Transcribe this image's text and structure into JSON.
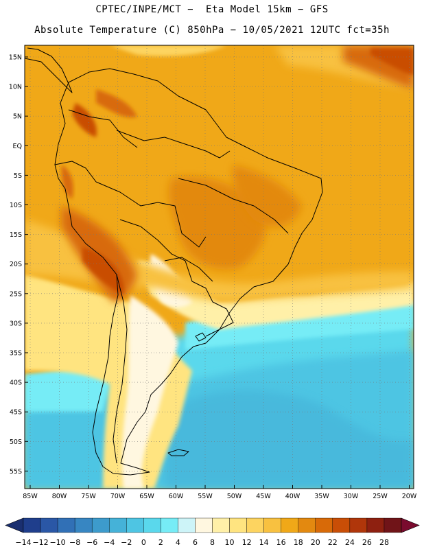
{
  "header": {
    "line1": "CPTEC/INPE/MCT −  Eta Model 15km − GFS",
    "line2": "Absolute Temperature (C) 850hPa − 10/05/2021 12UTC fct=35h"
  },
  "map": {
    "lat_ticks": [
      "15N",
      "10N",
      "5N",
      "EQ",
      "5S",
      "10S",
      "15S",
      "20S",
      "25S",
      "30S",
      "35S",
      "40S",
      "45S",
      "50S",
      "55S"
    ],
    "lon_ticks": [
      "85W",
      "80W",
      "75W",
      "70W",
      "65W",
      "60W",
      "55W",
      "50W",
      "45W",
      "40W",
      "35W",
      "30W",
      "25W",
      "20W"
    ],
    "field": "temperature 850hPa"
  },
  "colorbar": {
    "labels": [
      "-14",
      "-12",
      "-10",
      "-8",
      "-6",
      "-4",
      "-2",
      "0",
      "2",
      "4",
      "6",
      "8",
      "10",
      "12",
      "14",
      "16",
      "18",
      "20",
      "22",
      "24",
      "26",
      "28"
    ],
    "colors": [
      "#1f3e8c",
      "#2a57a6",
      "#3170b6",
      "#3786c2",
      "#3d9bcc",
      "#45b2d8",
      "#4ec5e3",
      "#5ad8ec",
      "#76ecf6",
      "#cdf4f8",
      "#fff7e0",
      "#fff0a8",
      "#ffe480",
      "#fdd460",
      "#f8c140",
      "#f0a818",
      "#e38910",
      "#d86a08",
      "#c94e06",
      "#b0360a",
      "#8e2010",
      "#701418"
    ],
    "low_end_color": "#1a2f70",
    "high_end_color": "#7a0b2e"
  }
}
